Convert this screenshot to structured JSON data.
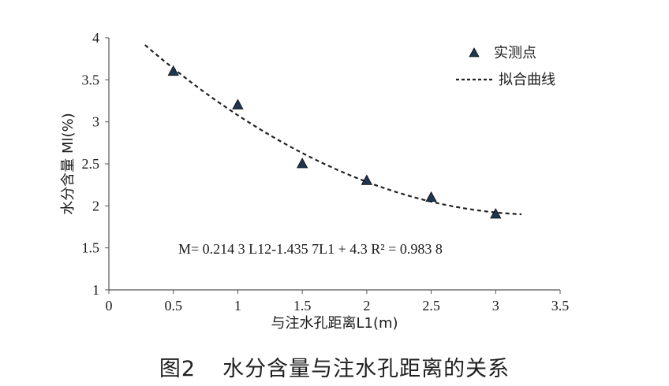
{
  "chart_data": {
    "type": "scatter",
    "xlabel": "与注水孔距离L1(m)",
    "ylabel": "水分含量 Ml(%)",
    "xlim": [
      0,
      3.5
    ],
    "ylim": [
      1,
      4
    ],
    "xticks": [
      "0",
      "0.5",
      "1",
      "1.5",
      "2",
      "2.5",
      "3",
      "3.5"
    ],
    "yticks": [
      "1",
      "1.5",
      "2",
      "2.5",
      "3",
      "3.5",
      "4"
    ],
    "series": [
      {
        "name": "实测点",
        "marker": "triangle",
        "x": [
          0.5,
          1.0,
          1.5,
          2.0,
          2.5,
          3.0
        ],
        "y": [
          3.6,
          3.2,
          2.5,
          2.3,
          2.1,
          1.9
        ]
      },
      {
        "name": "拟合曲线",
        "style": "dashed",
        "fit": {
          "a": 0.2143,
          "b": -1.4357,
          "c": 4.3
        },
        "x_range": [
          0.28,
          3.2
        ]
      }
    ],
    "annotation": "M= 0.214 3 L12-1.435 7L1 + 4.3 R² = 0.983 8",
    "grid": false,
    "legend_position": "top-right",
    "colors": {
      "marker_fill": "#1f3550",
      "marker_stroke": "#0d0d0d",
      "line": "#222222",
      "axis": "#555555"
    }
  },
  "caption": {
    "number": "图2",
    "title": "水分含量与注水孔距离的关系"
  }
}
